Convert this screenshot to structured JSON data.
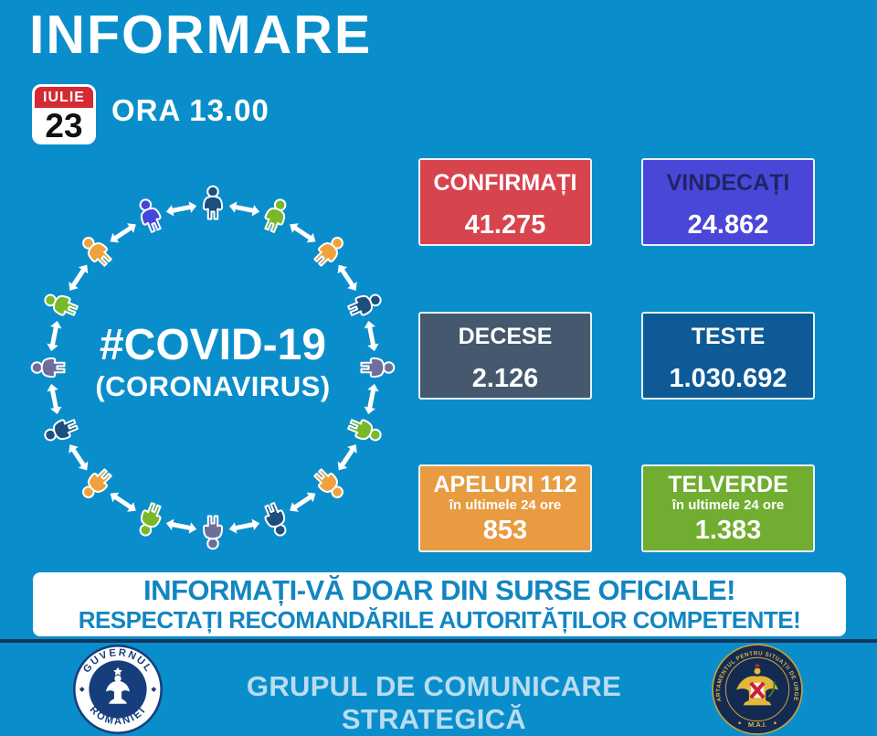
{
  "page": {
    "background": "#0a8ecb",
    "divider_color": "#14375f"
  },
  "header": {
    "title": "INFORMARE",
    "time_label": "ORA 13.00",
    "date_badge": {
      "month": "IULIE",
      "day": "23",
      "month_bg": "#d42a33"
    }
  },
  "graphic": {
    "hashtag_line": "#COVID-19",
    "sub_line": "(CORONAVIRUS)",
    "arrow_color": "#ffffff",
    "palette": {
      "navy": "#1c4e80",
      "green": "#79b829",
      "orange": "#f0a13b",
      "slate": "#6e6e9d",
      "violet": "#4646dd"
    },
    "sequence": [
      "navy",
      "green",
      "orange",
      "navy",
      "slate",
      "green",
      "orange",
      "navy",
      "slate",
      "green",
      "orange",
      "navy",
      "slate",
      "green",
      "orange",
      "violet"
    ]
  },
  "stats": [
    {
      "label": "CONFIRMAȚI",
      "value": "41.275",
      "bg": "#d8444e",
      "label_color": "#ffffff"
    },
    {
      "label": "VINDECAȚI",
      "value": "24.862",
      "bg": "#4a47d8",
      "label_color": "#1e2566"
    },
    {
      "label": "DECESE",
      "value": "2.126",
      "bg": "#45586d",
      "label_color": "#ffffff"
    },
    {
      "label": "TESTE",
      "value": "1.030.692",
      "bg": "#0e5a96",
      "label_color": "#ffffff"
    },
    {
      "label": "APELURI 112",
      "sub_label": "în ultimele 24 ore",
      "value": "853",
      "bg": "#e89b40",
      "label_color": "#ffffff"
    },
    {
      "label": "TELVERDE",
      "sub_label": "în ultimele 24 ore",
      "value": "1.383",
      "bg": "#70ad30",
      "label_color": "#ffffff"
    }
  ],
  "banner": {
    "line1": "INFORMAȚI-VĂ DOAR DIN SURSE OFICIALE!",
    "line2": "RESPECTAȚI RECOMANDĂRILE AUTORITĂȚILOR COMPETENTE!",
    "text_color": "#1286c2",
    "bg": "#ffffff"
  },
  "footer": {
    "label": "GRUPUL DE COMUNICARE STRATEGICĂ",
    "label_color": "#b9dcf0",
    "gov_seal": {
      "top_text": "GUVERNUL",
      "bottom_text": "ROMÂNIEI"
    },
    "dsu_seal": {
      "ring_text": "DEPARTAMENTUL PENTRU SITUAȚII DE URGENȚĂ",
      "bottom_text": "M.A.I."
    }
  }
}
